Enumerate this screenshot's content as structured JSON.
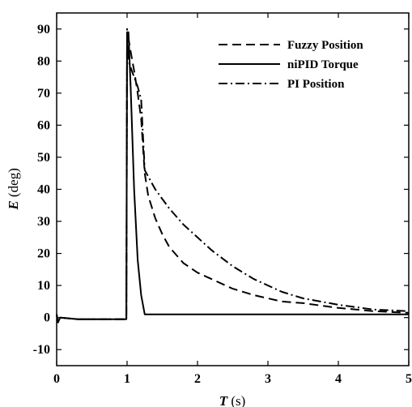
{
  "chart_data": {
    "type": "line",
    "xlabel_var": "T",
    "xlabel_unit": "(s)",
    "ylabel_var": "E",
    "ylabel_unit": "(deg)",
    "xlim": [
      0,
      5
    ],
    "ylim": [
      -15,
      95
    ],
    "xticks": [
      0,
      1,
      2,
      3,
      4,
      5
    ],
    "yticks": [
      -10,
      0,
      10,
      20,
      30,
      40,
      50,
      60,
      70,
      80,
      90
    ],
    "grid": false,
    "legend_position": "top-right",
    "series": [
      {
        "name": "Fuzzy Position",
        "dash": "dashed",
        "x": [
          0,
          0.02,
          0.05,
          0.3,
          0.6,
          0.99,
          1.0,
          1.02,
          1.05,
          1.1,
          1.15,
          1.2,
          1.25,
          1.3,
          1.4,
          1.5,
          1.6,
          1.8,
          2.0,
          2.2,
          2.5,
          2.8,
          3.0,
          3.2,
          3.5,
          4.0,
          4.5,
          5.0
        ],
        "y": [
          1,
          -1.5,
          0,
          -0.5,
          -0.5,
          -0.5,
          82,
          87,
          83,
          77,
          70,
          62,
          45,
          38,
          31,
          26,
          22,
          17,
          14,
          12,
          9,
          7,
          6,
          5,
          4.5,
          3,
          2,
          1.5
        ]
      },
      {
        "name": "niPID Torque",
        "dash": "solid",
        "x": [
          0,
          0.02,
          0.05,
          0.3,
          0.6,
          0.99,
          1.0,
          1.02,
          1.05,
          1.1,
          1.15,
          1.2,
          1.25,
          1.5,
          2.0,
          3.0,
          4.0,
          5.0
        ],
        "y": [
          1,
          -1.5,
          0,
          -0.5,
          -0.5,
          -0.5,
          89,
          89,
          72,
          40,
          18,
          7,
          1,
          1,
          1,
          1,
          1,
          1
        ]
      },
      {
        "name": "PI Position",
        "dash": "dashdot",
        "x": [
          0,
          0.02,
          0.05,
          0.3,
          0.6,
          0.99,
          1.0,
          1.02,
          1.05,
          1.1,
          1.15,
          1.2,
          1.25,
          1.3,
          1.4,
          1.5,
          1.6,
          1.8,
          2.0,
          2.2,
          2.5,
          2.8,
          3.0,
          3.2,
          3.5,
          4.0,
          4.5,
          5.0
        ],
        "y": [
          1,
          -1.5,
          0,
          -0.5,
          -0.5,
          -0.5,
          90,
          80,
          78,
          75,
          72,
          68,
          46,
          44,
          40,
          37,
          34,
          29,
          25,
          21,
          16,
          12,
          10,
          8,
          6,
          4,
          2.5,
          2
        ]
      }
    ]
  }
}
